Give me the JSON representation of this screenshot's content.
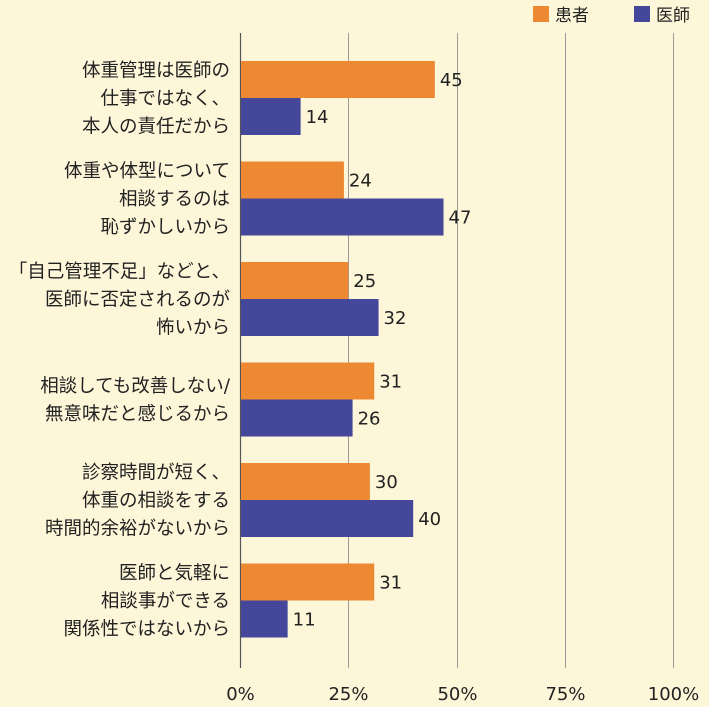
{
  "chart_data": {
    "type": "bar",
    "orientation": "horizontal",
    "categories": [
      [
        "体重管理は医師の",
        "仕事ではなく、",
        "本人の責任だから"
      ],
      [
        "体重や体型について",
        "相談するのは",
        "恥ずかしいから"
      ],
      [
        "「自己管理不足」などと、",
        "医師に否定されるのが",
        "怖いから"
      ],
      [
        "相談しても改善しない/",
        "無意味だと感じるから"
      ],
      [
        "診察時間が短く、",
        "体重の相談をする",
        "時間的余裕がないから"
      ],
      [
        "医師と気軽に",
        "相談事ができる",
        "関係性ではないから"
      ]
    ],
    "series": [
      {
        "name": "患者",
        "color": "#ec8932",
        "values": [
          45,
          24,
          25,
          31,
          30,
          31
        ]
      },
      {
        "name": "医師",
        "color": "#45479a",
        "values": [
          14,
          47,
          32,
          26,
          40,
          11
        ]
      }
    ],
    "xlim": [
      0,
      100
    ],
    "ticks": [
      "0%",
      "25%",
      "50%",
      "75%",
      "100%"
    ],
    "grid": true,
    "legend_position": "top-right"
  }
}
